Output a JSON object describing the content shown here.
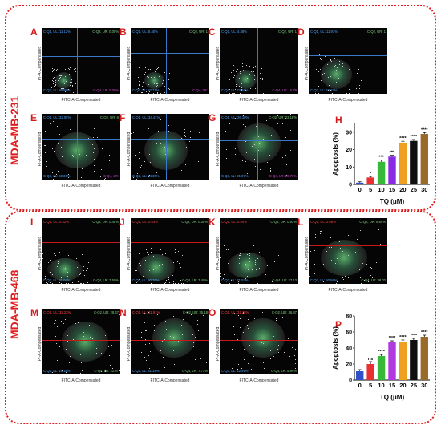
{
  "figure": {
    "sections": [
      {
        "label": "MDA-MB-231",
        "line_color": "#3a78c8",
        "text_color_ul": "#4aa3ff",
        "text_color_ur": "#7fd07f",
        "text_color_ll": "#4aa3ff",
        "text_color_lr": "#d040d0"
      },
      {
        "label": "MDA-MB-468",
        "line_color": "#c81818",
        "text_color_ul": "#ff4040",
        "text_color_ur": "#7fd07f",
        "text_color_ll": "#4aa3ff",
        "text_color_lr": "#7fd07f"
      }
    ],
    "x_axis_label": "FITC-A-Compensated",
    "y_axis_label": "PI-A-Compensated",
    "panels": [
      {
        "letter": "A",
        "section": 0,
        "ul": "C-Q1, UL: 11.12%",
        "ur": "C-Q2, UR: 0.00%",
        "ll": "C-Q3, LL: 88.88%",
        "lr": "C-Q4, LR: 0.00%"
      },
      {
        "letter": "B",
        "section": 0,
        "ul": "C-Q1, UL: 8.40%",
        "ur": "C-Q2, UR: 1",
        "ll": "C-Q3, LL: 87.71%",
        "lr": "C-Q4, LR:"
      },
      {
        "letter": "C",
        "section": 0,
        "ul": "C-Q1, UL: 4.38%",
        "ur": "C-Q2, UR: 1",
        "ll": "C-Q3, LL: 72.66%",
        "lr": "C-Q4, LR: 15.79"
      },
      {
        "letter": "D",
        "section": 0,
        "ul": "C-Q1, UL: 11.91%",
        "ur": "C-Q2, UR: 1",
        "ll": "C-Q3, LL: 62.27%",
        "lr": ""
      },
      {
        "letter": "E",
        "section": 0,
        "ul": "C-Q1, UL: 32.05%",
        "ur": "C-Q2, UR: 6",
        "ll": "C-Q3, LL: 50.36%",
        "lr": "C-Q4, LR:"
      },
      {
        "letter": "F",
        "section": 0,
        "ul": "C-Q1, UL: 34.41%",
        "ur": "",
        "ll": "C-Q3, LL: 54.35%",
        "lr": ""
      },
      {
        "letter": "G",
        "section": 0,
        "ul": "C-Q1, UL: 26.10%",
        "ur": "C-Q2, UR: 23.18%",
        "ll": "C-Q3, LL: 21.97%",
        "lr": "C-Q4, LR: 28.76%"
      },
      {
        "letter": "I",
        "section": 1,
        "ul": "C-Q1, UL: 0.42%",
        "ur": "C-Q2, UR: 0.45%",
        "ll": "C-Q3, LL: 91.04%",
        "lr": "C-Q4, LR: 7.50%"
      },
      {
        "letter": "J",
        "section": 1,
        "ul": "C-Q1, UL: 0.63%",
        "ur": "C-Q2, UR: 0.30%",
        "ll": "C-Q3, LL: 90.70%",
        "lr": "C-Q4, LR: 7.40%"
      },
      {
        "letter": "K",
        "section": 1,
        "ul": "C-Q1, UL: 0.54%",
        "ur": "C-Q2, UR: 0.93%",
        "ll": "C-Q3, LL: 71.57%",
        "lr": "C-Q4, LR: 27.13"
      },
      {
        "letter": "L",
        "section": 1,
        "ul": "C-Q1, UL: 2.08%",
        "ur": "C-Q2, UR: 8.64%",
        "ll": "C-Q3, LL: 50.56%",
        "lr": "C-Q4, LR: 39.02"
      },
      {
        "letter": "M",
        "section": 1,
        "ul": "C-Q1, UL: 32.23%",
        "ur": "C-Q2, UR: 28.67",
        "ll": "C-Q3, LL: 16.18%",
        "lr": "C-Q4, LR: 22.87"
      },
      {
        "letter": "N",
        "section": 1,
        "ul": "C-Q1, UL: 31.91%",
        "ur": "C-Q2, UR: 35.18",
        "ll": "C-Q3, LL: 31.18%",
        "lr": "C-Q4, LR: 7.73%"
      },
      {
        "letter": "O",
        "section": 1,
        "ul": "C-Q1, UL: 31.28%",
        "ur": "C-Q2, UR: 36.87",
        "ll": "C-Q3, LL: 22.91%",
        "lr": "C-Q4, LR: 5.94%"
      }
    ]
  },
  "chart_data": [
    {
      "type": "bar",
      "panel": "H",
      "categories": [
        "0",
        "5",
        "10",
        "15",
        "20",
        "25",
        "30"
      ],
      "values": [
        1,
        4,
        13,
        16,
        24,
        25,
        29
      ],
      "errors": [
        0.5,
        0.6,
        1.0,
        0.8,
        0.8,
        0.8,
        0.8
      ],
      "significance": [
        "",
        "*",
        "***",
        "***",
        "****",
        "****",
        "****"
      ],
      "colors": [
        "#3050c8",
        "#e83030",
        "#38b838",
        "#8a2be2",
        "#f0a020",
        "#101010",
        "#9a6a2a"
      ],
      "xlabel": "TQ (μM)",
      "ylabel": "Apoptosis (%)",
      "yticks": [
        0,
        10,
        20,
        30
      ],
      "ylim": [
        0,
        35
      ]
    },
    {
      "type": "bar",
      "panel": "P",
      "categories": [
        "0",
        "5",
        "10",
        "15",
        "20",
        "25",
        "30"
      ],
      "values": [
        11,
        20,
        30,
        47,
        48,
        50,
        54
      ],
      "errors": [
        2,
        3,
        2,
        2,
        2,
        2,
        2
      ],
      "significance": [
        "",
        "ns",
        "****",
        "****",
        "****",
        "****",
        "****"
      ],
      "colors": [
        "#3050c8",
        "#e83030",
        "#38b838",
        "#b03ae0",
        "#f0a020",
        "#101010",
        "#9a6a2a"
      ],
      "xlabel": "TQ (μM)",
      "ylabel": "Apoptosis (%)",
      "yticks": [
        0,
        20,
        40,
        60,
        80
      ],
      "ylim": [
        0,
        80
      ]
    }
  ]
}
